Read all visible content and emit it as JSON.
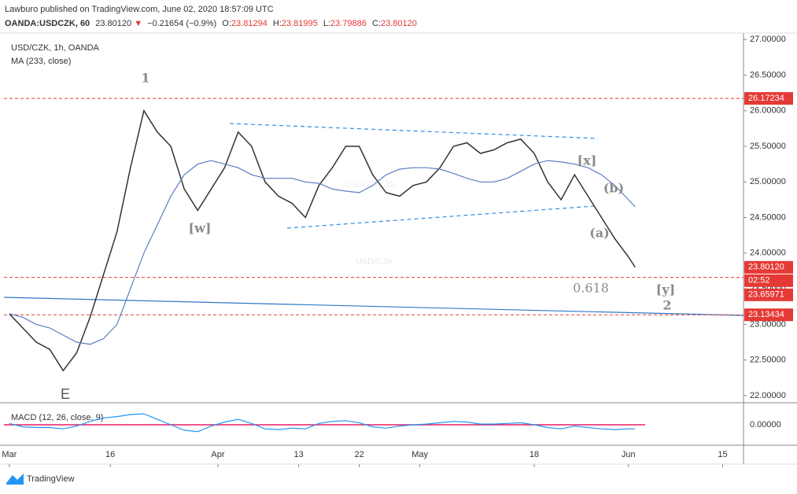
{
  "header": {
    "publisher": "Lawburo published on TradingView.com, June 02, 2020 18:57:09 UTC",
    "symbol": "OANDA:USDCZK, 60",
    "last": "23.80120",
    "arrow": "▼",
    "change": "−0.21654 (−0.9%)",
    "ohlc": [
      {
        "label": "O:",
        "value": "23.81294"
      },
      {
        "label": "H:",
        "value": "23.81995"
      },
      {
        "label": "L:",
        "value": "23.79886"
      },
      {
        "label": "C:",
        "value": "23.80120"
      }
    ]
  },
  "footer": {
    "brand": "TradingView"
  },
  "chart_data": [
    {
      "type": "line",
      "title": "USD/CZK, 1h, OANDA",
      "watermark": "USDCZK, 1h",
      "x": [
        0,
        2,
        4,
        6,
        8,
        10,
        12,
        14,
        16,
        18,
        20,
        22,
        24,
        26,
        28,
        30,
        32,
        34,
        36,
        38,
        40,
        42,
        44,
        46,
        48,
        50,
        52,
        54,
        56,
        58,
        60,
        62,
        64,
        66,
        68,
        70,
        72,
        74,
        76,
        78,
        80,
        82,
        84,
        86,
        88,
        90,
        92,
        93
      ],
      "xlim": [
        -0.8,
        109.1
      ],
      "xticks": [
        {
          "value": 0,
          "label": "Mar"
        },
        {
          "value": 15,
          "label": "16"
        },
        {
          "value": 31,
          "label": "Apr"
        },
        {
          "value": 43,
          "label": "13"
        },
        {
          "value": 52,
          "label": "22"
        },
        {
          "value": 61,
          "label": "May"
        },
        {
          "value": 78,
          "label": "18"
        },
        {
          "value": 92,
          "label": "Jun"
        },
        {
          "value": 106,
          "label": "15"
        }
      ],
      "ylim": [
        21.9,
        27.09
      ],
      "yticks": [
        {
          "value": 22,
          "label": "22.00000"
        },
        {
          "value": 22.5,
          "label": "22.50000"
        },
        {
          "value": 23,
          "label": "23.00000"
        },
        {
          "value": 23.5,
          "label": "23.50000"
        },
        {
          "value": 24,
          "label": "24.00000"
        },
        {
          "value": 24.5,
          "label": "24.50000"
        },
        {
          "value": 25,
          "label": "25.00000"
        },
        {
          "value": 25.5,
          "label": "25.50000"
        },
        {
          "value": 26,
          "label": "26.00000"
        },
        {
          "value": 26.5,
          "label": "26.50000"
        },
        {
          "value": 27,
          "label": "27.00000"
        }
      ],
      "series": [
        {
          "name": "USD/CZK",
          "color": "#333333",
          "values": [
            23.15,
            22.95,
            22.75,
            22.65,
            22.35,
            22.6,
            23.1,
            23.7,
            24.3,
            25.2,
            26.0,
            25.7,
            25.5,
            24.9,
            24.6,
            24.9,
            25.2,
            25.7,
            25.5,
            25.0,
            24.8,
            24.7,
            24.5,
            24.95,
            25.2,
            25.5,
            25.5,
            25.1,
            24.85,
            24.8,
            24.95,
            25.0,
            25.2,
            25.5,
            25.55,
            25.4,
            25.45,
            25.55,
            25.6,
            25.4,
            25.0,
            24.75,
            25.1,
            24.8,
            24.5,
            24.2,
            23.95,
            23.8
          ]
        },
        {
          "name": "MA (233, close)",
          "color": "#5b7cc4",
          "values": [
            23.15,
            23.1,
            23.0,
            22.95,
            22.85,
            22.75,
            22.72,
            22.8,
            23.0,
            23.5,
            24.0,
            24.4,
            24.8,
            25.1,
            25.25,
            25.3,
            25.25,
            25.2,
            25.1,
            25.05,
            25.05,
            25.05,
            25.0,
            24.98,
            24.9,
            24.87,
            24.85,
            24.95,
            25.1,
            25.18,
            25.2,
            25.2,
            25.18,
            25.12,
            25.05,
            25.0,
            25.0,
            25.05,
            25.15,
            25.25,
            25.3,
            25.28,
            25.25,
            25.2,
            25.1,
            24.95,
            24.75,
            24.65
          ]
        }
      ],
      "hlines": [
        {
          "value": 26.17234,
          "label": "26.17234"
        },
        {
          "value": 23.65971,
          "label": "23.65971"
        },
        {
          "value": 23.13434,
          "label": "23.13434"
        }
      ],
      "hline_color": "#e53935",
      "last_price": {
        "value": 23.8012,
        "label": "23.80120"
      },
      "countdown": "02:52",
      "annotations": [
        "1",
        "[w]",
        "[x]",
        "(b)",
        "(a)",
        "0.618",
        "[y]",
        "2",
        "E"
      ]
    },
    {
      "type": "line",
      "title": "MACD (12, 26, close, 9)",
      "color": "#2196f3",
      "values": [
        0.02,
        -0.03,
        -0.04,
        -0.04,
        -0.06,
        -0.02,
        0.05,
        0.1,
        0.12,
        0.15,
        0.16,
        0.08,
        0.0,
        -0.08,
        -0.1,
        -0.02,
        0.04,
        0.08,
        0.02,
        -0.06,
        -0.07,
        -0.05,
        -0.06,
        0.02,
        0.05,
        0.06,
        0.03,
        -0.03,
        -0.05,
        -0.02,
        0.0,
        0.01,
        0.03,
        0.05,
        0.04,
        0.01,
        0.01,
        0.02,
        0.03,
        0.0,
        -0.04,
        -0.06,
        -0.02,
        -0.04,
        -0.06,
        -0.07,
        -0.06,
        -0.06
      ],
      "ylim": [
        -0.3,
        0.3
      ],
      "yticks": [
        {
          "value": 0,
          "label": "0.00000"
        }
      ]
    }
  ]
}
